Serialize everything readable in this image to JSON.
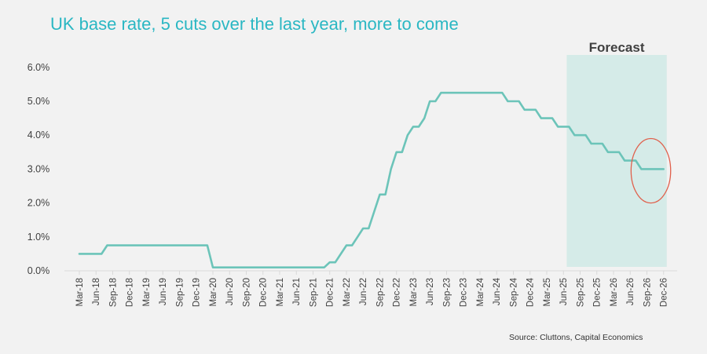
{
  "chart_data": {
    "type": "line",
    "title": "UK base rate, 5 cuts over the last year, more to come",
    "xlabel": "",
    "ylabel": "",
    "ylim": [
      0,
      6
    ],
    "grid": false,
    "legend": "none",
    "y_ticks": [
      "0.0%",
      "1.0%",
      "2.0%",
      "3.0%",
      "4.0%",
      "5.0%",
      "6.0%"
    ],
    "x_ticks": [
      "Mar-18",
      "Jun-18",
      "Sep-18",
      "Dec-18",
      "Mar-19",
      "Jun-19",
      "Sep-19",
      "Dec-19",
      "Mar-20",
      "Jun-20",
      "Sep-20",
      "Dec-20",
      "Mar-21",
      "Jun-21",
      "Sep-21",
      "Dec-21",
      "Mar-22",
      "Jun-22",
      "Sep-22",
      "Dec-22",
      "Mar-23",
      "Jun-23",
      "Sep-23",
      "Dec-23",
      "Mar-24",
      "Jun-24",
      "Sep-24",
      "Dec-24",
      "Mar-25",
      "Jun-25",
      "Sep-25",
      "Dec-25",
      "Mar-26",
      "Jun-26",
      "Sep-26",
      "Dec-26"
    ],
    "series": [
      {
        "values": [
          {
            "x": "2018-03",
            "y": 0.5
          },
          {
            "x": "2018-07",
            "y": 0.5
          },
          {
            "x": "2018-08",
            "y": 0.75
          },
          {
            "x": "2020-02",
            "y": 0.75
          },
          {
            "x": "2020-03",
            "y": 0.1
          },
          {
            "x": "2021-11",
            "y": 0.1
          },
          {
            "x": "2021-12",
            "y": 0.25
          },
          {
            "x": "2022-01",
            "y": 0.25
          },
          {
            "x": "2022-02",
            "y": 0.5
          },
          {
            "x": "2022-03",
            "y": 0.75
          },
          {
            "x": "2022-04",
            "y": 0.75
          },
          {
            "x": "2022-05",
            "y": 1.0
          },
          {
            "x": "2022-06",
            "y": 1.25
          },
          {
            "x": "2022-07",
            "y": 1.25
          },
          {
            "x": "2022-08",
            "y": 1.75
          },
          {
            "x": "2022-09",
            "y": 2.25
          },
          {
            "x": "2022-10",
            "y": 2.25
          },
          {
            "x": "2022-11",
            "y": 3.0
          },
          {
            "x": "2022-12",
            "y": 3.5
          },
          {
            "x": "2023-01",
            "y": 3.5
          },
          {
            "x": "2023-02",
            "y": 4.0
          },
          {
            "x": "2023-03",
            "y": 4.25
          },
          {
            "x": "2023-04",
            "y": 4.25
          },
          {
            "x": "2023-05",
            "y": 4.5
          },
          {
            "x": "2023-06",
            "y": 5.0
          },
          {
            "x": "2023-07",
            "y": 5.0
          },
          {
            "x": "2023-08",
            "y": 5.25
          },
          {
            "x": "2024-07",
            "y": 5.25
          },
          {
            "x": "2024-08",
            "y": 5.0
          },
          {
            "x": "2024-10",
            "y": 5.0
          },
          {
            "x": "2024-11",
            "y": 4.75
          },
          {
            "x": "2025-01",
            "y": 4.75
          },
          {
            "x": "2025-02",
            "y": 4.5
          },
          {
            "x": "2025-04",
            "y": 4.5
          },
          {
            "x": "2025-05",
            "y": 4.25
          },
          {
            "x": "2025-07",
            "y": 4.25
          },
          {
            "x": "2025-08",
            "y": 4.0
          },
          {
            "x": "2025-10",
            "y": 4.0
          },
          {
            "x": "2025-11",
            "y": 3.75
          },
          {
            "x": "2026-01",
            "y": 3.75
          },
          {
            "x": "2026-02",
            "y": 3.5
          },
          {
            "x": "2026-04",
            "y": 3.5
          },
          {
            "x": "2026-05",
            "y": 3.25
          },
          {
            "x": "2026-07",
            "y": 3.25
          },
          {
            "x": "2026-08",
            "y": 3.0
          },
          {
            "x": "2026-12",
            "y": 3.0
          }
        ]
      }
    ],
    "annotations": [
      {
        "type": "shaded-region",
        "label": "Forecast",
        "x_start": "2025-08",
        "x_end": "2026-12"
      },
      {
        "type": "ellipse",
        "x_start": "2026-07",
        "x_end": "2026-12",
        "y_range": [
          2.0,
          3.9
        ]
      }
    ]
  },
  "source": "Source: Cluttons, Capital Economics",
  "colors": {
    "title": "#2ab7c3",
    "line": "#6cc4b9",
    "forecast_fill": "#d5ebe8",
    "forecast_label": "#404040",
    "ellipse": "#e0604c",
    "axis": "#d9d9d9",
    "tick_text": "#404040"
  }
}
